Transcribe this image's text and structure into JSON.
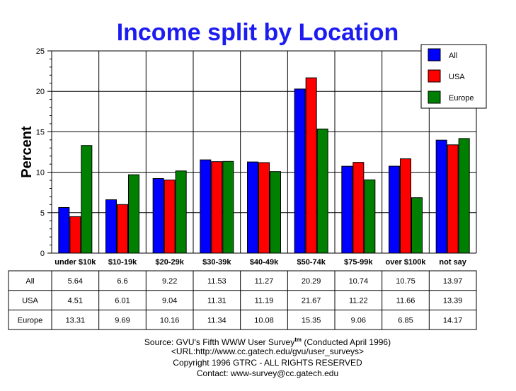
{
  "chart_data": {
    "type": "bar",
    "title": "Income split by Location",
    "xlabel": "",
    "ylabel": "Percent",
    "ylim": [
      0,
      25
    ],
    "yticks": [
      "0",
      "5",
      "10",
      "15",
      "20",
      "25"
    ],
    "grid": true,
    "legend_position": "top-right",
    "categories": [
      "under $10k",
      "$10-19k",
      "$20-29k",
      "$30-39k",
      "$40-49k",
      "$50-74k",
      "$75-99k",
      "over $100k",
      "not say"
    ],
    "series": [
      {
        "name": "All",
        "color": "#0000ff",
        "values": [
          5.64,
          6.6,
          9.22,
          11.53,
          11.27,
          20.29,
          10.74,
          10.75,
          13.97
        ]
      },
      {
        "name": "USA",
        "color": "#ff0000",
        "values": [
          4.51,
          6.01,
          9.04,
          11.31,
          11.19,
          21.67,
          11.22,
          11.66,
          13.39
        ]
      },
      {
        "name": "Europe",
        "color": "#008000",
        "values": [
          13.31,
          9.69,
          10.16,
          11.34,
          10.08,
          15.35,
          9.06,
          6.85,
          14.17
        ]
      }
    ],
    "table": {
      "rows": [
        {
          "label": "All",
          "cells": [
            "5.64",
            "6.6",
            "9.22",
            "11.53",
            "11.27",
            "20.29",
            "10.74",
            "10.75",
            "13.97"
          ]
        },
        {
          "label": "USA",
          "cells": [
            "4.51",
            "6.01",
            "9.04",
            "11.31",
            "11.19",
            "21.67",
            "11.22",
            "11.66",
            "13.39"
          ]
        },
        {
          "label": "Europe",
          "cells": [
            "13.31",
            "9.69",
            "10.16",
            "11.34",
            "10.08",
            "15.35",
            "9.06",
            "6.85",
            "14.17"
          ]
        }
      ]
    }
  },
  "footer": {
    "source": "Source: GVU's Fifth WWW User Survey",
    "tm": "tm",
    "conducted": " (Conducted April 1996)",
    "url": "<URL:http://www.cc.gatech.edu/gvu/user_surveys>",
    "copyright": "Copyright 1996 GTRC -  ALL RIGHTS RESERVED",
    "contact": "Contact: www-survey@cc.gatech.edu"
  }
}
